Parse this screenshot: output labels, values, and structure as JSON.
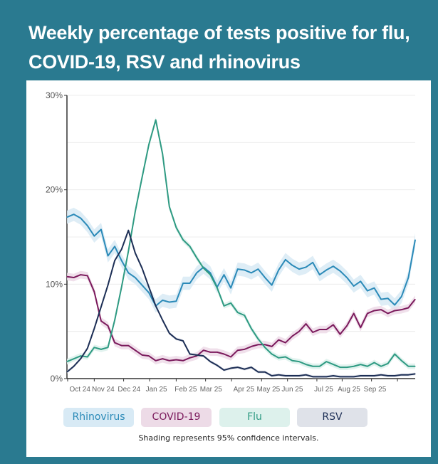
{
  "title": "Weekly percentage of tests positive for flu, COVID-19, RSV and rhinovirus",
  "footnote": "Shading represents 95% confidence intervals.",
  "chart_data": {
    "type": "line",
    "title": "Weekly percentage of tests positive for flu, COVID-19, RSV and rhinovirus",
    "xlabel": "",
    "ylabel": "",
    "ylim": [
      0,
      30
    ],
    "y_ticks": [
      "0%",
      "10%",
      "20%",
      "30%"
    ],
    "x_tick_labels": [
      "Oct 24",
      "Nov 24",
      "Dec 24",
      "Jan 25",
      "Feb 25",
      "Mar 25",
      "Apr 25",
      "May 25",
      "Jun 25",
      "Jul 25",
      "Aug 25",
      "Sep 25"
    ],
    "grid": "horizontal",
    "legend_position": "bottom",
    "x_unit": "weekly, late Sep 2024 to Sep 2025 (52 weeks)",
    "series": [
      {
        "name": "Rhinovirus",
        "color": "#2b8ab8",
        "legend_bg": "#d8eaf5",
        "ci_halfwidth": 0.7,
        "values": [
          17.1,
          17.4,
          17.0,
          16.2,
          15.1,
          15.8,
          13.0,
          14.0,
          12.5,
          11.2,
          10.7,
          9.9,
          9.1,
          7.7,
          8.3,
          8.1,
          8.2,
          10.1,
          10.1,
          11.2,
          11.8,
          11.2,
          9.7,
          11.0,
          9.6,
          11.6,
          11.5,
          11.2,
          11.6,
          10.7,
          9.9,
          11.5,
          12.6,
          12.0,
          11.6,
          11.8,
          12.3,
          11.0,
          11.5,
          11.9,
          11.4,
          10.7,
          9.8,
          10.3,
          9.3,
          9.6,
          8.4,
          8.5,
          7.8,
          8.7,
          10.7,
          14.7
        ]
      },
      {
        "name": "COVID-19",
        "color": "#7b1a5c",
        "legend_bg": "#eddbe7",
        "ci_halfwidth": 0.4,
        "values": [
          10.8,
          10.7,
          11.0,
          10.9,
          9.2,
          6.1,
          5.6,
          3.8,
          3.5,
          3.5,
          3.0,
          2.5,
          2.4,
          1.9,
          2.1,
          1.9,
          2.0,
          1.9,
          2.2,
          2.4,
          3.0,
          2.8,
          2.8,
          2.6,
          2.3,
          3.0,
          3.1,
          3.4,
          3.6,
          3.6,
          3.4,
          4.1,
          3.8,
          4.5,
          5.0,
          5.8,
          4.9,
          5.2,
          5.2,
          5.7,
          4.7,
          5.6,
          6.9,
          5.4,
          6.9,
          7.2,
          7.3,
          6.9,
          7.2,
          7.3,
          7.5,
          8.4
        ]
      },
      {
        "name": "Flu",
        "color": "#2e9a82",
        "legend_bg": "#ddf1ec",
        "ci_halfwidth": 0.3,
        "values": [
          1.8,
          2.1,
          2.4,
          2.3,
          3.3,
          3.1,
          3.3,
          6.2,
          9.7,
          13.5,
          17.7,
          21.3,
          24.8,
          27.4,
          23.8,
          18.2,
          16.0,
          14.7,
          14.0,
          12.8,
          11.7,
          11.0,
          9.6,
          7.7,
          8.0,
          7.0,
          6.7,
          5.3,
          4.2,
          3.3,
          2.6,
          2.2,
          2.3,
          1.9,
          1.8,
          1.5,
          1.3,
          1.3,
          1.8,
          1.5,
          1.2,
          1.2,
          1.3,
          1.5,
          1.3,
          1.7,
          1.3,
          1.6,
          2.6,
          1.9,
          1.3,
          1.3
        ]
      },
      {
        "name": "RSV",
        "color": "#1c2e55",
        "legend_bg": "#dfe2e9",
        "ci_halfwidth": 0.15,
        "values": [
          0.7,
          1.3,
          2.1,
          3.2,
          5.3,
          7.6,
          9.9,
          12.5,
          13.7,
          15.7,
          13.3,
          11.7,
          9.7,
          7.7,
          6.2,
          4.8,
          4.2,
          4.0,
          2.6,
          2.5,
          2.4,
          1.8,
          1.4,
          0.9,
          1.1,
          1.2,
          1.0,
          1.2,
          0.7,
          0.7,
          0.3,
          0.4,
          0.3,
          0.3,
          0.3,
          0.4,
          0.2,
          0.2,
          0.2,
          0.3,
          0.2,
          0.2,
          0.2,
          0.3,
          0.3,
          0.3,
          0.4,
          0.3,
          0.3,
          0.4,
          0.4,
          0.5
        ]
      }
    ]
  }
}
